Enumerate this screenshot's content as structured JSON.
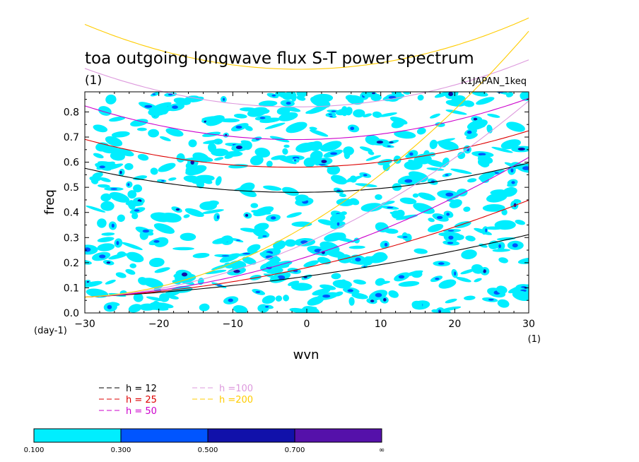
{
  "chart_data": {
    "type": "line",
    "title": "toa outgoing longwave flux S-T power spectrum",
    "subtitle_left": "(1)",
    "subtitle_right": "K1JAPAN_1keq",
    "xlabel": "wvn",
    "ylabel": "freq",
    "x_unit": "(1)",
    "y_unit": "(day-1)",
    "xlim": [
      -30,
      30
    ],
    "ylim": [
      0,
      0.88
    ],
    "xticks": [
      "−30",
      "−20",
      "−10",
      "0",
      "10",
      "20",
      "30"
    ],
    "yticks": [
      "0.0",
      "0.1",
      "0.2",
      "0.3",
      "0.4",
      "0.5",
      "0.6",
      "0.7",
      "0.8"
    ],
    "series": [
      {
        "name": "h = 12",
        "color": "#000000"
      },
      {
        "name": "h = 25",
        "color": "#dd0000"
      },
      {
        "name": "h = 50",
        "color": "#cc00cc"
      },
      {
        "name": "h =100",
        "color": "#dd99dd"
      },
      {
        "name": "h =200",
        "color": "#ffcc00"
      }
    ],
    "minima": [
      {
        "series": "h = 12",
        "x": -1.5,
        "y": 0.48
      },
      {
        "series": "h = 25",
        "x": -2,
        "y": 0.58
      },
      {
        "series": "h = 50",
        "x": -1.5,
        "y": 0.69
      },
      {
        "series": "h =100",
        "x": -1.5,
        "y": 0.82
      },
      {
        "series": "h =200",
        "x": -1,
        "y": 0.97
      }
    ],
    "contour_levels": [
      "0.100",
      "0.300",
      "0.500",
      "0.700",
      "∞"
    ],
    "contour_colors": [
      "#00eeff",
      "#0055ff",
      "#1111aa",
      "#5511aa"
    ]
  }
}
